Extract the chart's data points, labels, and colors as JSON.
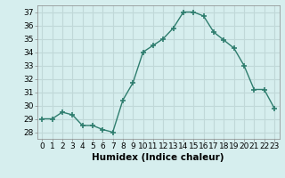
{
  "x": [
    0,
    1,
    2,
    3,
    4,
    5,
    6,
    7,
    8,
    9,
    10,
    11,
    12,
    13,
    14,
    15,
    16,
    17,
    18,
    19,
    20,
    21,
    22,
    23
  ],
  "y": [
    29,
    29,
    29.5,
    29.3,
    28.5,
    28.5,
    28.2,
    28,
    30.4,
    31.7,
    34,
    34.5,
    35,
    35.8,
    37,
    37,
    36.7,
    35.5,
    34.9,
    34.3,
    33,
    31.2,
    31.2,
    29.8
  ],
  "line_color": "#2e7d6e",
  "marker": "+",
  "marker_size": 4,
  "bg_color": "#d6eeee",
  "grid_color": "#c0d8d8",
  "xlabel": "Humidex (Indice chaleur)",
  "ylim": [
    27.5,
    37.5
  ],
  "xlim": [
    -0.5,
    23.5
  ],
  "yticks": [
    28,
    29,
    30,
    31,
    32,
    33,
    34,
    35,
    36,
    37
  ],
  "xticks": [
    0,
    1,
    2,
    3,
    4,
    5,
    6,
    7,
    8,
    9,
    10,
    11,
    12,
    13,
    14,
    15,
    16,
    17,
    18,
    19,
    20,
    21,
    22,
    23
  ],
  "tick_fontsize": 6.5,
  "label_fontsize": 7.5
}
